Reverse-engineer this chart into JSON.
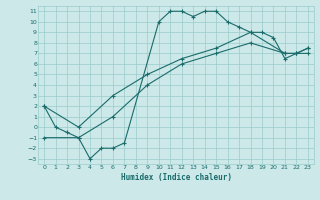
{
  "xlabel": "Humidex (Indice chaleur)",
  "bg_color": "#cce8e8",
  "grid_color": "#99cccc",
  "line_color": "#1a6b6b",
  "xlim": [
    -0.5,
    23.5
  ],
  "ylim": [
    -3.5,
    11.5
  ],
  "xticks": [
    0,
    1,
    2,
    3,
    4,
    5,
    6,
    7,
    8,
    9,
    10,
    11,
    12,
    13,
    14,
    15,
    16,
    17,
    18,
    19,
    20,
    21,
    22,
    23
  ],
  "yticks": [
    -3,
    -2,
    -1,
    0,
    1,
    2,
    3,
    4,
    5,
    6,
    7,
    8,
    9,
    10,
    11
  ],
  "curve1_x": [
    0,
    1,
    2,
    3,
    4,
    5,
    6,
    7,
    10,
    11,
    12,
    13,
    14,
    15,
    16,
    17,
    18,
    19,
    20,
    21,
    22,
    23
  ],
  "curve1_y": [
    2,
    0,
    -0.5,
    -1,
    -3,
    -2,
    -2,
    -1.5,
    10,
    11,
    11,
    10.5,
    11,
    11,
    10,
    9.5,
    9,
    9,
    8.5,
    6.5,
    7,
    7
  ],
  "curve2_x": [
    0,
    3,
    6,
    9,
    12,
    15,
    18,
    21,
    22,
    23
  ],
  "curve2_y": [
    -1,
    -1,
    1,
    4,
    6,
    7,
    8,
    7,
    7,
    7.5
  ],
  "curve3_x": [
    0,
    3,
    6,
    9,
    12,
    15,
    18,
    21,
    22,
    23
  ],
  "curve3_y": [
    2,
    0,
    3,
    5,
    6.5,
    7.5,
    9,
    7,
    7,
    7.5
  ]
}
